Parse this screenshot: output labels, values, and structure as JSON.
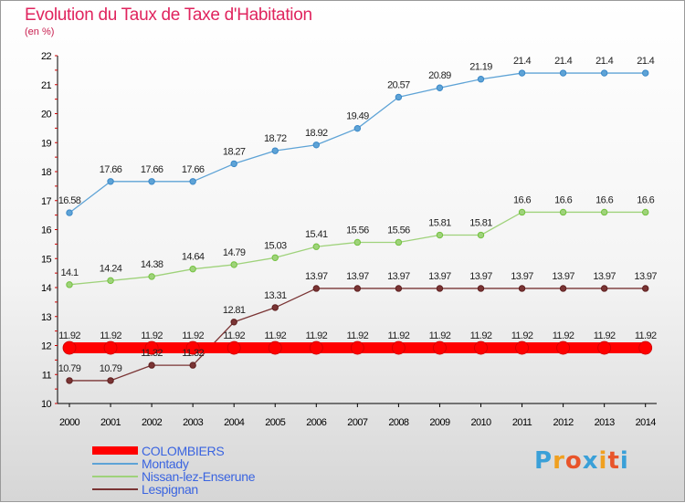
{
  "title": "Evolution du Taux de Taxe d'Habitation",
  "unit": "(en %)",
  "logo": {
    "text": "Proxiti",
    "letter_colors": [
      "#3aa0d8",
      "#f0a020",
      "#e8542a",
      "#3aa0d8",
      "#f0a020",
      "#e8542a",
      "#3aa0d8"
    ]
  },
  "chart_data": {
    "type": "line",
    "title": "Evolution du Taux de Taxe d'Habitation",
    "ylabel": "(en %)",
    "xlabel": "",
    "x": [
      "2000",
      "2001",
      "2002",
      "2003",
      "2004",
      "2005",
      "2006",
      "2007",
      "2008",
      "2009",
      "2010",
      "2011",
      "2012",
      "2013",
      "2014"
    ],
    "ylim": [
      10,
      22
    ],
    "yticks": [
      "10",
      "11",
      "12",
      "13",
      "14",
      "15",
      "16",
      "17",
      "18",
      "19",
      "20",
      "21",
      "22"
    ],
    "grid": "none",
    "legend_position": "bottom-left",
    "series": [
      {
        "name": "COLOMBIERS",
        "color": "#ff0000",
        "values": [
          11.92,
          11.92,
          11.92,
          11.92,
          11.92,
          11.92,
          11.92,
          11.92,
          11.92,
          11.92,
          11.92,
          11.92,
          11.92,
          11.92,
          11.92
        ],
        "labels": [
          "11.92",
          "11.92",
          "11.92",
          "11.92",
          "11.92",
          "11.92",
          "11.92",
          "11.92",
          "11.92",
          "11.92",
          "11.92",
          "11.92",
          "11.92",
          "11.92",
          "11.92"
        ]
      },
      {
        "name": "Montady",
        "color": "#5ea3d6",
        "marker": "#3a88c8",
        "values": [
          16.58,
          17.66,
          17.66,
          17.66,
          18.27,
          18.72,
          18.92,
          19.49,
          20.57,
          20.89,
          21.19,
          21.4,
          21.4,
          21.4,
          21.4
        ],
        "labels": [
          "16.58",
          "17.66",
          "17.66",
          "17.66",
          "18.27",
          "18.72",
          "18.92",
          "19.49",
          "20.57",
          "20.89",
          "21.19",
          "21.4",
          "21.4",
          "21.4",
          "21.4"
        ]
      },
      {
        "name": "Nissan-lez-Enserune",
        "color": "#9fd27b",
        "marker": "#72c23e",
        "values": [
          14.1,
          14.24,
          14.38,
          14.64,
          14.79,
          15.03,
          15.41,
          15.56,
          15.56,
          15.81,
          15.81,
          16.6,
          16.6,
          16.6,
          16.6
        ],
        "labels": [
          "14.1",
          "14.24",
          "14.38",
          "14.64",
          "14.79",
          "15.03",
          "15.41",
          "15.56",
          "15.56",
          "15.81",
          "15.81",
          "16.6",
          "16.6",
          "16.6",
          "16.6"
        ]
      },
      {
        "name": "Lespignan",
        "color": "#7a3434",
        "marker": "#5e1f1f",
        "values": [
          10.79,
          10.79,
          11.32,
          11.32,
          12.81,
          13.31,
          13.97,
          13.97,
          13.97,
          13.97,
          13.97,
          13.97,
          13.97,
          13.97,
          13.97
        ],
        "labels": [
          "10.79",
          "10.79",
          "11.32",
          "11.32",
          "12.81",
          "13.31",
          "13.97",
          "13.97",
          "13.97",
          "13.97",
          "13.97",
          "13.97",
          "13.97",
          "13.97",
          "13.97"
        ]
      }
    ]
  }
}
